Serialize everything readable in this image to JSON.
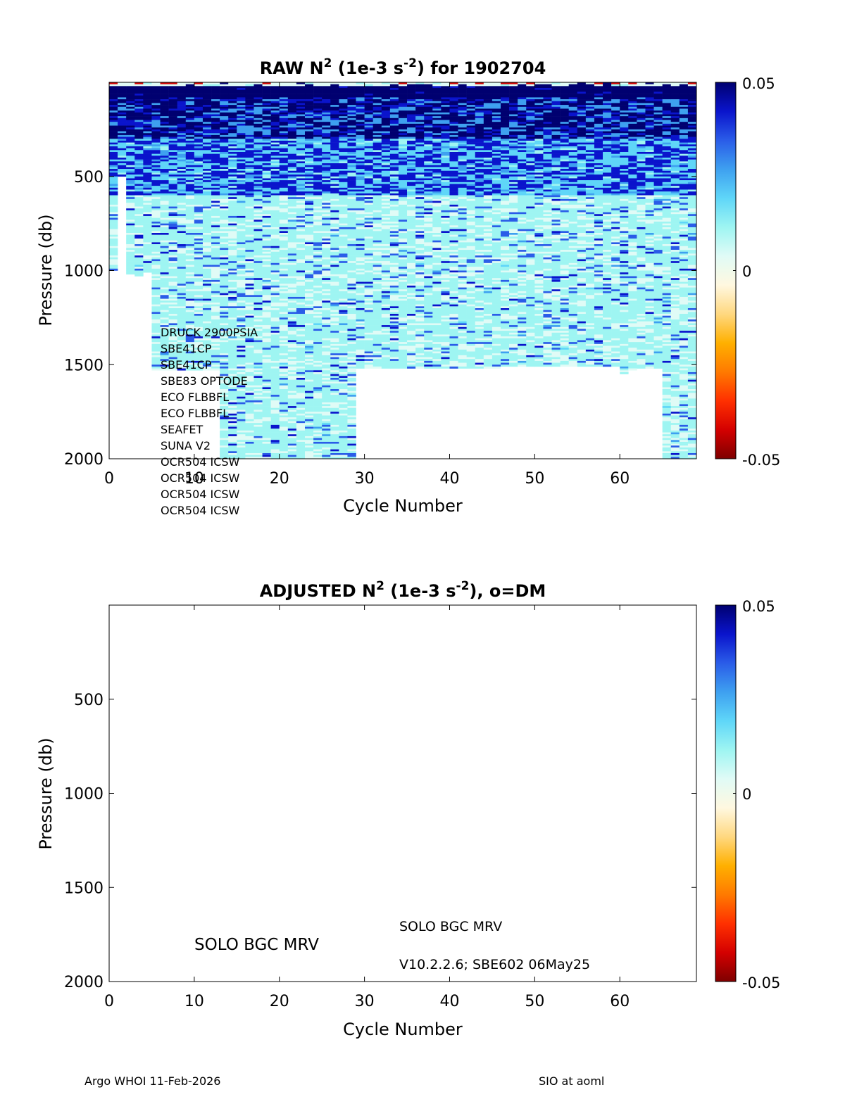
{
  "colors": {
    "colormap": [
      "#7f0000",
      "#d40000",
      "#ff3000",
      "#ff7a00",
      "#ffb000",
      "#ffd880",
      "#fff8e0",
      "#e0fbf6",
      "#9ef5f2",
      "#5fd6f8",
      "#3ea0f0",
      "#2a5ce8",
      "#0a14cc",
      "#000070"
    ],
    "axis": "#000000",
    "background": "#ffffff"
  },
  "chart_data": [
    {
      "type": "heatmap",
      "title": {
        "prefix": "RAW N",
        "sup1": "2",
        "mid": " (1e-3 s",
        "sup2": "-2",
        "suffix": ") for 1902704"
      },
      "xlabel": "Cycle Number",
      "ylabel": "Pressure (db)",
      "xlim": [
        0,
        69
      ],
      "ylim": [
        0,
        2000
      ],
      "y_reversed": true,
      "xticks": [
        0,
        10,
        20,
        30,
        40,
        50,
        60
      ],
      "yticks": [
        500,
        1000,
        1500,
        2000
      ],
      "colorbar": {
        "min": -0.05,
        "max": 0.05,
        "ticks": [
          "0.05",
          "0",
          "-0.05"
        ]
      },
      "profiles": [
        {
          "cycle": 1,
          "max_pressure": 1000
        },
        {
          "cycle": 2,
          "max_pressure": 500
        },
        {
          "cycle": 3,
          "max_pressure": 1020
        },
        {
          "cycle": 4,
          "max_pressure": 1030
        },
        {
          "cycle": 5,
          "max_pressure": 1010
        },
        {
          "cycle": 6,
          "max_pressure": 1530
        },
        {
          "cycle": 7,
          "max_pressure": 1530
        },
        {
          "cycle": 8,
          "max_pressure": 1530
        },
        {
          "cycle": 9,
          "max_pressure": 1530
        },
        {
          "cycle": 10,
          "max_pressure": 1530
        },
        {
          "cycle": 11,
          "max_pressure": 1530
        },
        {
          "cycle": 12,
          "max_pressure": 1530
        },
        {
          "cycle": 13,
          "max_pressure": 1530
        },
        {
          "cycle": 14,
          "max_pressure": 2000
        },
        {
          "cycle": 15,
          "max_pressure": 2000
        },
        {
          "cycle": 16,
          "max_pressure": 2000
        },
        {
          "cycle": 17,
          "max_pressure": 2000
        },
        {
          "cycle": 18,
          "max_pressure": 2000
        },
        {
          "cycle": 19,
          "max_pressure": 2000
        },
        {
          "cycle": 20,
          "max_pressure": 2000
        },
        {
          "cycle": 21,
          "max_pressure": 2000
        },
        {
          "cycle": 22,
          "max_pressure": 2000
        },
        {
          "cycle": 23,
          "max_pressure": 2000
        },
        {
          "cycle": 24,
          "max_pressure": 2000
        },
        {
          "cycle": 25,
          "max_pressure": 2000
        },
        {
          "cycle": 26,
          "max_pressure": 2000
        },
        {
          "cycle": 27,
          "max_pressure": 2000
        },
        {
          "cycle": 28,
          "max_pressure": 2000
        },
        {
          "cycle": 29,
          "max_pressure": 2000
        },
        {
          "cycle": 30,
          "max_pressure": 1520
        },
        {
          "cycle": 31,
          "max_pressure": 1520
        },
        {
          "cycle": 32,
          "max_pressure": 1520
        },
        {
          "cycle": 33,
          "max_pressure": 1520
        },
        {
          "cycle": 34,
          "max_pressure": 1520
        },
        {
          "cycle": 35,
          "max_pressure": 1520
        },
        {
          "cycle": 36,
          "max_pressure": 1520
        },
        {
          "cycle": 37,
          "max_pressure": 1520
        },
        {
          "cycle": 38,
          "max_pressure": 1520
        },
        {
          "cycle": 39,
          "max_pressure": 1520
        },
        {
          "cycle": 40,
          "max_pressure": 1520
        },
        {
          "cycle": 41,
          "max_pressure": 1520
        },
        {
          "cycle": 42,
          "max_pressure": 1520
        },
        {
          "cycle": 43,
          "max_pressure": 1520
        },
        {
          "cycle": 44,
          "max_pressure": 1520
        },
        {
          "cycle": 45,
          "max_pressure": 1520
        },
        {
          "cycle": 46,
          "max_pressure": 1520
        },
        {
          "cycle": 47,
          "max_pressure": 1510
        },
        {
          "cycle": 48,
          "max_pressure": 1510
        },
        {
          "cycle": 49,
          "max_pressure": 1510
        },
        {
          "cycle": 50,
          "max_pressure": 1510
        },
        {
          "cycle": 51,
          "max_pressure": 1510
        },
        {
          "cycle": 52,
          "max_pressure": 1510
        },
        {
          "cycle": 53,
          "max_pressure": 1510
        },
        {
          "cycle": 54,
          "max_pressure": 1510
        },
        {
          "cycle": 55,
          "max_pressure": 1510
        },
        {
          "cycle": 56,
          "max_pressure": 1510
        },
        {
          "cycle": 57,
          "max_pressure": 1510
        },
        {
          "cycle": 58,
          "max_pressure": 1510
        },
        {
          "cycle": 59,
          "max_pressure": 1510
        },
        {
          "cycle": 60,
          "max_pressure": 1510
        },
        {
          "cycle": 61,
          "max_pressure": 1550
        },
        {
          "cycle": 62,
          "max_pressure": 1530
        },
        {
          "cycle": 63,
          "max_pressure": 1520
        },
        {
          "cycle": 64,
          "max_pressure": 1520
        },
        {
          "cycle": 65,
          "max_pressure": 1520
        },
        {
          "cycle": 66,
          "max_pressure": 2000
        },
        {
          "cycle": 67,
          "max_pressure": 2000
        },
        {
          "cycle": 68,
          "max_pressure": 2000
        },
        {
          "cycle": 69,
          "max_pressure": 2000
        }
      ],
      "sensor_labels": [
        "DRUCK 2900PSIA",
        "SBE41CP",
        "SBE41CP",
        "SBE83 OPTODE",
        "ECO FLBBFL",
        "ECO FLBBFL",
        "SEAFET",
        "SUNA V2",
        "OCR504 ICSW",
        "OCR504 ICSW",
        "OCR504 ICSW",
        "OCR504 ICSW"
      ]
    },
    {
      "type": "heatmap",
      "title": {
        "prefix": "ADJUSTED N",
        "sup1": "2",
        "mid": " (1e-3 s",
        "sup2": "-2",
        "suffix": "), o=DM"
      },
      "xlabel": "Cycle Number",
      "ylabel": "Pressure (db)",
      "xlim": [
        0,
        69
      ],
      "ylim": [
        0,
        2000
      ],
      "y_reversed": true,
      "xticks": [
        0,
        10,
        20,
        30,
        40,
        50,
        60
      ],
      "yticks": [
        500,
        1000,
        1500,
        2000
      ],
      "colorbar": {
        "min": -0.05,
        "max": 0.05,
        "ticks": [
          "0.05",
          "0",
          "-0.05"
        ]
      },
      "profiles": [],
      "annotations": {
        "float_type": "SOLO BGC MRV",
        "float_type_small": "SOLO BGC MRV",
        "firmware": "V10.2.2.6; SBE602 06May25"
      }
    }
  ],
  "footer": {
    "left": "Argo WHOI 11-Feb-2026",
    "right": "SIO at aoml"
  }
}
